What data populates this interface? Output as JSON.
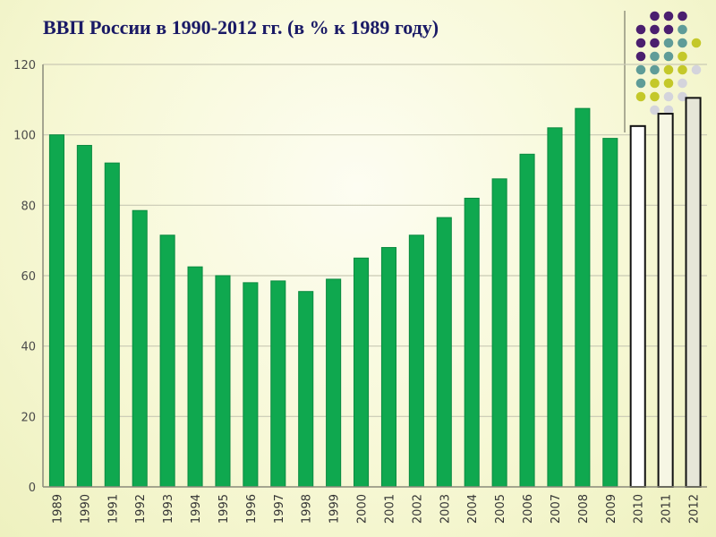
{
  "title": "ВВП России в 1990-2012 гг. (в % к 1989 году)",
  "decor_dot_colors": [
    "#4b1f6f",
    "#5f9c98",
    "#c4c82a",
    "#d4d4dc"
  ],
  "chart_data": {
    "type": "bar",
    "title": "ВВП России в 1990-2012 гг. (в % к 1989 году)",
    "xlabel": "",
    "ylabel": "",
    "ylim": [
      0,
      120
    ],
    "yticks": [
      0,
      20,
      40,
      60,
      80,
      100,
      120
    ],
    "grid": true,
    "categories": [
      "1989",
      "1990",
      "1991",
      "1992",
      "1993",
      "1994",
      "1995",
      "1996",
      "1997",
      "1998",
      "1999",
      "2000",
      "2001",
      "2002",
      "2003",
      "2004",
      "2005",
      "2006",
      "2007",
      "2008",
      "2009",
      "2010",
      "2011",
      "2012"
    ],
    "values": [
      100,
      97,
      92,
      78.5,
      71.5,
      62.5,
      60,
      58,
      58.5,
      55.5,
      59,
      65,
      68,
      71.5,
      76.5,
      82,
      87.5,
      94.5,
      102,
      107.5,
      99,
      102.5,
      106,
      110.5
    ],
    "bar_fills": [
      "#0fa84f",
      "#0fa84f",
      "#0fa84f",
      "#0fa84f",
      "#0fa84f",
      "#0fa84f",
      "#0fa84f",
      "#0fa84f",
      "#0fa84f",
      "#0fa84f",
      "#0fa84f",
      "#0fa84f",
      "#0fa84f",
      "#0fa84f",
      "#0fa84f",
      "#0fa84f",
      "#0fa84f",
      "#0fa84f",
      "#0fa84f",
      "#0fa84f",
      "#0fa84f",
      "#ffffff",
      "#f6f6e4",
      "#e6e6d8"
    ]
  }
}
